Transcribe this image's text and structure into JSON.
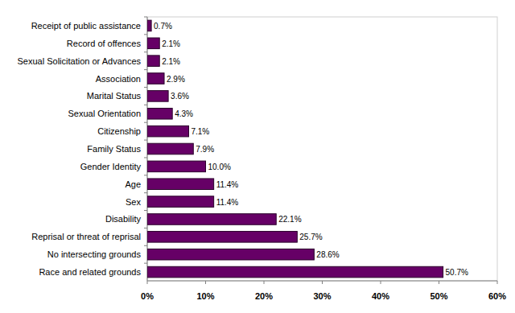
{
  "chart_data": {
    "type": "bar",
    "orientation": "horizontal",
    "categories": [
      "Receipt of public assistance",
      "Record of offences",
      "Sexual Solicitation or Advances",
      "Association",
      "Marital Status",
      "Sexual Orientation",
      "Citizenship",
      "Family Status",
      "Gender Identity",
      "Age",
      "Sex",
      "Disability",
      "Reprisal or threat of reprisal",
      "No intersecting grounds",
      "Race and related grounds"
    ],
    "values": [
      0.7,
      2.1,
      2.1,
      2.9,
      3.6,
      4.3,
      7.1,
      7.9,
      10.0,
      11.4,
      11.4,
      22.1,
      25.7,
      28.6,
      50.7
    ],
    "value_labels": [
      "0.7%",
      "2.1%",
      "2.1%",
      "2.9%",
      "3.6%",
      "4.3%",
      "7.1%",
      "7.9%",
      "10.0%",
      "11.4%",
      "11.4%",
      "22.1%",
      "25.7%",
      "28.6%",
      "50.7%"
    ],
    "color": "#660066",
    "xlim": [
      0,
      60
    ],
    "xticks": [
      {
        "value": 0,
        "label": "0%"
      },
      {
        "value": 10,
        "label": "10%"
      },
      {
        "value": 20,
        "label": "20%"
      },
      {
        "value": 30,
        "label": "30%"
      },
      {
        "value": 40,
        "label": "40%"
      },
      {
        "value": 50,
        "label": "50%"
      },
      {
        "value": 60,
        "label": "60%"
      }
    ],
    "grid": false,
    "data_labels": true
  }
}
